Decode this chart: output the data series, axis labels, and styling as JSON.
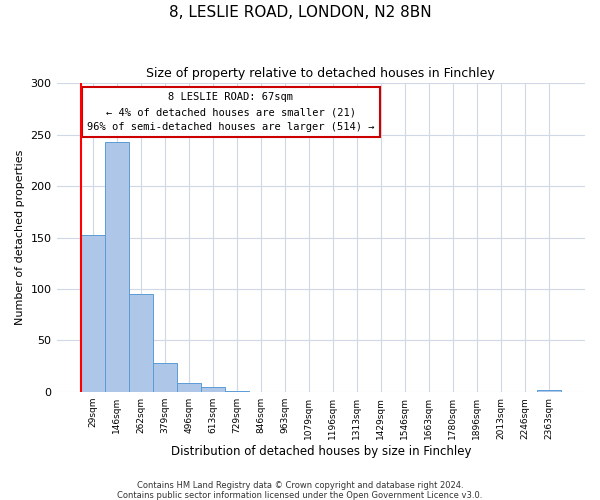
{
  "title": "8, LESLIE ROAD, LONDON, N2 8BN",
  "subtitle": "Size of property relative to detached houses in Finchley",
  "xlabel": "Distribution of detached houses by size in Finchley",
  "ylabel": "Number of detached properties",
  "bar_values": [
    152,
    243,
    95,
    28,
    9,
    5,
    1,
    0,
    0,
    0,
    0,
    0,
    0,
    0,
    0,
    0,
    0,
    0,
    0,
    2
  ],
  "bin_labels": [
    "29sqm",
    "146sqm",
    "262sqm",
    "379sqm",
    "496sqm",
    "613sqm",
    "729sqm",
    "846sqm",
    "963sqm",
    "1079sqm",
    "1196sqm",
    "1313sqm",
    "1429sqm",
    "1546sqm",
    "1663sqm",
    "1780sqm",
    "1896sqm",
    "2013sqm",
    "2246sqm",
    "2363sqm"
  ],
  "bar_color": "#aec6e8",
  "bar_edge_color": "#5b9bd5",
  "ylim": [
    0,
    300
  ],
  "yticks": [
    0,
    50,
    100,
    150,
    200,
    250,
    300
  ],
  "annotation_title": "8 LESLIE ROAD: 67sqm",
  "annotation_line1": "← 4% of detached houses are smaller (21)",
  "annotation_line2": "96% of semi-detached houses are larger (514) →",
  "annotation_box_color": "#ffffff",
  "annotation_box_edge_color": "#cc0000",
  "footnote1": "Contains HM Land Registry data © Crown copyright and database right 2024.",
  "footnote2": "Contains public sector information licensed under the Open Government Licence v3.0.",
  "bg_color": "#ffffff",
  "grid_color": "#d0d8e8"
}
